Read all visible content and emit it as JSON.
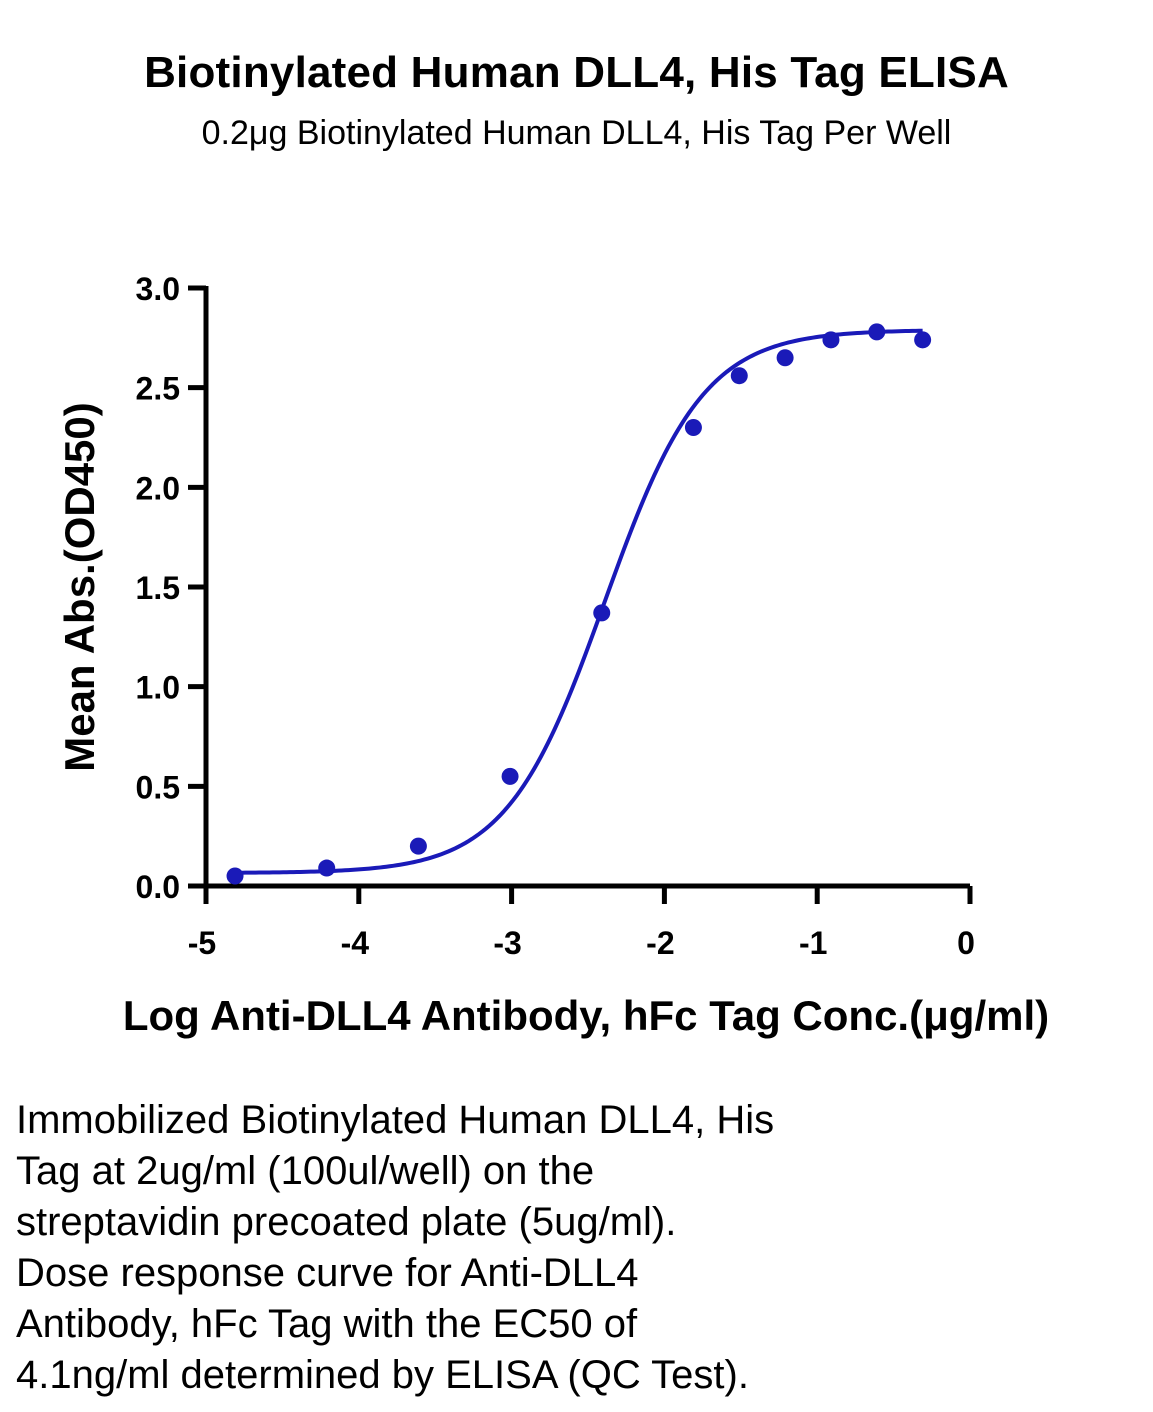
{
  "chart_data": {
    "type": "scatter",
    "title": "Biotinylated Human DLL4, His Tag ELISA",
    "subtitle": "0.2μg Biotinylated Human DLL4, His Tag Per Well",
    "xlabel": "Log Anti-DLL4 Antibody, hFc Tag Conc.(μg/ml)",
    "ylabel": "Mean Abs.(OD450)",
    "xlim": [
      -5,
      0
    ],
    "ylim": [
      0,
      3
    ],
    "x_ticks": [
      "-5",
      "-4",
      "-3",
      "-2",
      "-1",
      "0"
    ],
    "y_ticks": [
      "0.0",
      "0.5",
      "1.0",
      "1.5",
      "2.0",
      "2.5",
      "3.0"
    ],
    "series_color": "#1a1ab8",
    "grid": false,
    "x": [
      -4.81,
      -4.21,
      -3.61,
      -3.01,
      -2.41,
      -1.81,
      -1.51,
      -1.21,
      -0.91,
      -0.61,
      -0.31
    ],
    "y": [
      0.05,
      0.09,
      0.2,
      0.55,
      1.37,
      2.3,
      2.56,
      2.65,
      2.74,
      2.78,
      2.74
    ],
    "fit": {
      "model": "4PL",
      "bottom": 0.065,
      "top": 2.79,
      "log_ec50": -2.39,
      "hill": 1.35
    }
  },
  "caption": [
    "Immobilized Biotinylated Human DLL4, His",
    "Tag at 2ug/ml (100ul/well) on the",
    "streptavidin precoated plate (5ug/ml).",
    "Dose response curve for Anti-DLL4",
    "Antibody, hFc Tag with the EC50 of",
    "4.1ng/ml determined by ELISA (QC Test)."
  ]
}
